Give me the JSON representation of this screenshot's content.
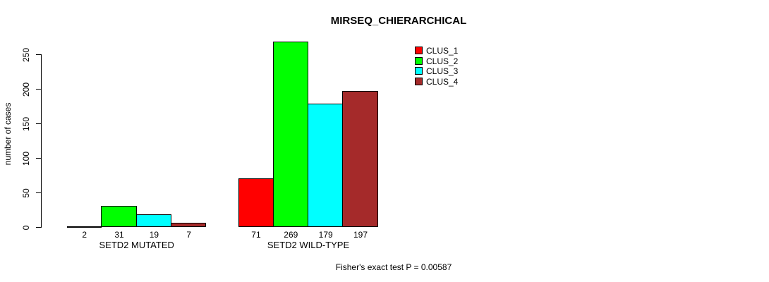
{
  "chart_data": {
    "type": "bar",
    "title": "MIRSEQ_CHIERARCHICAL",
    "ylabel": "number of cases",
    "footnote": "Fisher's exact test P = 0.00587",
    "groups": [
      "SETD2 MUTATED",
      "SETD2 WILD-TYPE"
    ],
    "series": [
      {
        "name": "CLUS_1",
        "color": "#ff0000",
        "values": [
          2,
          71
        ]
      },
      {
        "name": "CLUS_2",
        "color": "#00ff00",
        "values": [
          31,
          269
        ]
      },
      {
        "name": "CLUS_3",
        "color": "#00ffff",
        "values": [
          19,
          179
        ]
      },
      {
        "name": "CLUS_4",
        "color": "#a52a2a",
        "values": [
          7,
          197
        ]
      }
    ],
    "yticks": [
      0,
      50,
      100,
      150,
      200,
      250
    ],
    "ylim": [
      0,
      270
    ],
    "grid": false,
    "legend_position": "top-right",
    "bar_value_labels": true,
    "background_color": "#ffffff",
    "axis_color": "#000000"
  }
}
